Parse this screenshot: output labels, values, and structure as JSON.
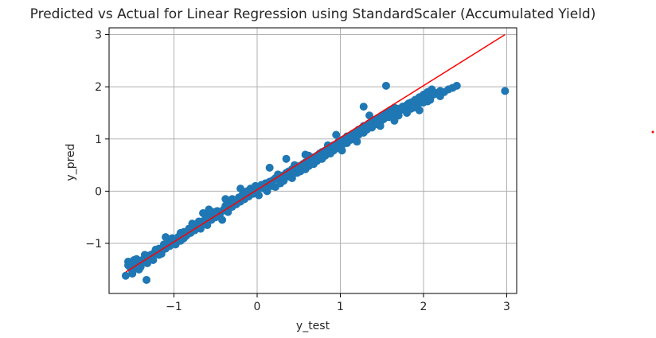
{
  "chart_data": {
    "type": "scatter",
    "title": "Predicted vs Actual for Linear Regression using StandardScaler (Accumulated Yield)",
    "xlabel": "y_test",
    "ylabel": "y_pred",
    "xlim": [
      -1.78,
      3.12
    ],
    "ylim": [
      -1.96,
      3.13
    ],
    "xticks": [
      -1,
      0,
      1,
      2,
      3
    ],
    "xtick_labels": [
      "−1",
      "0",
      "1",
      "2",
      "3"
    ],
    "yticks": [
      -1,
      0,
      1,
      2,
      3
    ],
    "ytick_labels": [
      "−1",
      "0",
      "1",
      "2",
      "3"
    ],
    "grid": true,
    "colors": {
      "points": "#1f77b4",
      "fit_line": "#ff0000",
      "grid": "#b0b0b0",
      "frame": "#000000"
    },
    "fit_line": {
      "x": [
        -1.58,
        2.98
      ],
      "y": [
        -1.55,
        3.0
      ]
    },
    "series": [
      {
        "marker": "circle",
        "x": [
          -1.58,
          -1.55,
          -1.52,
          -1.5,
          -1.48,
          -1.45,
          -1.42,
          -1.4,
          -1.38,
          -1.35,
          -1.32,
          -1.3,
          -1.28,
          -1.25,
          -1.22,
          -1.2,
          -1.18,
          -1.15,
          -1.12,
          -1.1,
          -1.08,
          -1.05,
          -1.02,
          -1.0,
          -0.98,
          -0.95,
          -0.92,
          -0.9,
          -0.88,
          -0.85,
          -0.82,
          -0.8,
          -0.78,
          -0.75,
          -0.72,
          -0.7,
          -0.68,
          -0.65,
          -0.62,
          -0.6,
          -0.58,
          -0.55,
          -0.52,
          -0.5,
          -0.48,
          -0.45,
          -0.42,
          -0.4,
          -0.38,
          -0.35,
          -0.32,
          -0.3,
          -0.28,
          -0.25,
          -0.22,
          -0.2,
          -0.18,
          -0.15,
          -0.12,
          -0.1,
          -0.08,
          -0.05,
          -0.02,
          0.0,
          0.02,
          0.05,
          0.08,
          0.1,
          0.12,
          0.15,
          0.18,
          0.2,
          0.22,
          0.25,
          0.28,
          0.3,
          0.32,
          0.35,
          0.38,
          0.4,
          0.42,
          0.45,
          0.48,
          0.5,
          0.52,
          0.55,
          0.58,
          0.6,
          0.62,
          0.65,
          0.68,
          0.7,
          0.72,
          0.75,
          0.78,
          0.8,
          0.82,
          0.85,
          0.88,
          0.9,
          0.92,
          0.95,
          0.98,
          1.0,
          1.02,
          1.05,
          1.08,
          1.1,
          1.12,
          1.15,
          1.18,
          1.2,
          1.22,
          1.25,
          1.28,
          1.3,
          1.32,
          1.35,
          1.38,
          1.4,
          1.42,
          1.45,
          1.48,
          1.5,
          1.52,
          1.55,
          1.58,
          1.6,
          1.62,
          1.65,
          1.68,
          1.7,
          1.72,
          1.75,
          1.78,
          1.8,
          1.82,
          1.85,
          1.88,
          1.9,
          1.92,
          1.95,
          1.98,
          2.0,
          2.05,
          2.1,
          2.15,
          2.2,
          2.25,
          2.3,
          2.35,
          2.4,
          2.98,
          -1.55,
          -1.48,
          -1.42,
          -1.35,
          -1.28,
          -1.22,
          -1.15,
          -1.08,
          -1.02,
          -0.95,
          -0.88,
          -0.82,
          -0.75,
          -0.68,
          -0.62,
          -0.55,
          -0.48,
          -0.42,
          -0.35,
          -0.28,
          -0.22,
          -0.15,
          -0.08,
          -0.02,
          0.05,
          0.12,
          0.18,
          0.25,
          0.32,
          0.38,
          0.45,
          0.52,
          0.58,
          0.65,
          0.72,
          0.78,
          0.85,
          0.92,
          0.98,
          1.05,
          1.12,
          1.18,
          1.25,
          1.32,
          1.38,
          1.45,
          1.52,
          1.58,
          1.65,
          1.72,
          1.78,
          1.85,
          1.92,
          1.98,
          -1.5,
          -1.46,
          -1.38,
          -1.32,
          -1.25,
          -1.18,
          -1.12,
          -1.05,
          -0.98,
          -0.92,
          -0.85,
          -0.78,
          -0.72,
          -0.65,
          -0.58,
          -0.52,
          -0.45,
          -0.38,
          -0.32,
          -0.25,
          -0.18,
          -0.12,
          -0.05,
          0.02,
          0.08,
          0.15,
          0.22,
          0.28,
          0.35,
          0.42,
          0.48,
          0.55,
          0.62,
          0.68,
          0.75,
          0.82,
          0.88,
          0.95,
          1.02,
          1.08,
          1.15,
          1.22,
          1.28,
          1.35,
          1.42,
          1.48,
          1.55,
          1.62,
          1.68,
          1.75,
          1.82,
          1.88,
          1.95,
          2.02,
          2.08,
          2.12,
          -1.33,
          -0.65,
          -0.58,
          -0.38,
          -0.2,
          0.15,
          0.35,
          0.45,
          0.62,
          0.95,
          1.02,
          1.2,
          1.28,
          1.35,
          1.48,
          1.55,
          1.7,
          1.88,
          2.0,
          2.08,
          2.12,
          -1.45,
          -1.1,
          -0.92,
          -0.72,
          -0.52,
          -0.3,
          -0.12,
          0.05,
          0.25,
          0.4,
          0.58,
          0.72,
          0.85,
          1.12,
          1.3,
          1.45,
          1.65,
          1.8,
          1.95,
          2.05,
          2.2
        ],
        "y": [
          -1.62,
          -1.35,
          -1.48,
          -1.58,
          -1.42,
          -1.38,
          -1.5,
          -1.45,
          -1.36,
          -1.3,
          -1.38,
          -1.25,
          -1.22,
          -1.32,
          -1.18,
          -1.12,
          -1.22,
          -1.15,
          -1.02,
          -1.1,
          -0.98,
          -1.05,
          -0.9,
          -0.95,
          -1.02,
          -0.88,
          -0.8,
          -0.92,
          -0.78,
          -0.85,
          -0.72,
          -0.8,
          -0.62,
          -0.75,
          -0.68,
          -0.58,
          -0.72,
          -0.6,
          -0.52,
          -0.65,
          -0.48,
          -0.55,
          -0.42,
          -0.5,
          -0.38,
          -0.45,
          -0.55,
          -0.35,
          -0.28,
          -0.4,
          -0.22,
          -0.3,
          -0.18,
          -0.25,
          -0.12,
          -0.2,
          -0.08,
          -0.15,
          -0.02,
          -0.1,
          0.05,
          -0.05,
          0.1,
          0.02,
          -0.08,
          0.12,
          0.05,
          0.15,
          0.0,
          0.18,
          0.1,
          0.22,
          0.08,
          0.25,
          0.15,
          0.3,
          0.2,
          0.32,
          0.28,
          0.38,
          0.25,
          0.42,
          0.35,
          0.45,
          0.38,
          0.5,
          0.42,
          0.55,
          0.48,
          0.6,
          0.52,
          0.65,
          0.58,
          0.7,
          0.62,
          0.75,
          0.68,
          0.8,
          0.72,
          0.85,
          0.78,
          0.9,
          0.82,
          0.95,
          0.88,
          1.0,
          0.92,
          1.05,
          0.98,
          1.1,
          1.02,
          1.15,
          1.08,
          1.2,
          1.12,
          1.25,
          1.18,
          1.3,
          1.22,
          1.35,
          1.28,
          1.4,
          1.32,
          1.45,
          1.38,
          1.5,
          1.42,
          1.55,
          1.48,
          1.6,
          1.52,
          1.58,
          1.55,
          1.62,
          1.6,
          1.65,
          1.58,
          1.7,
          1.62,
          1.75,
          1.68,
          1.8,
          1.72,
          1.85,
          1.9,
          1.95,
          1.88,
          1.92,
          1.9,
          1.95,
          1.98,
          2.02,
          1.92,
          -1.42,
          -1.32,
          -1.4,
          -1.22,
          -1.28,
          -1.12,
          -1.2,
          -1.05,
          -0.98,
          -0.92,
          -0.9,
          -0.75,
          -0.7,
          -0.62,
          -0.55,
          -0.5,
          -0.42,
          -0.38,
          -0.3,
          -0.25,
          -0.18,
          -0.1,
          -0.05,
          0.02,
          0.08,
          0.12,
          0.2,
          0.28,
          0.3,
          0.38,
          0.45,
          0.48,
          0.55,
          0.62,
          0.68,
          0.75,
          0.8,
          0.88,
          0.95,
          1.0,
          1.05,
          1.12,
          1.18,
          1.22,
          1.3,
          1.38,
          1.42,
          1.5,
          1.45,
          1.55,
          1.6,
          1.58,
          1.65,
          1.7,
          -1.55,
          -1.45,
          -1.32,
          -1.28,
          -1.2,
          -1.1,
          -1.08,
          -0.95,
          -0.92,
          -0.85,
          -0.82,
          -0.7,
          -0.68,
          -0.58,
          -0.52,
          -0.45,
          -0.4,
          -0.32,
          -0.28,
          -0.2,
          -0.15,
          -0.08,
          0.0,
          0.05,
          0.12,
          0.18,
          0.25,
          0.3,
          0.35,
          0.42,
          0.48,
          0.52,
          0.6,
          0.65,
          0.72,
          0.78,
          0.85,
          0.9,
          0.98,
          1.05,
          1.1,
          1.18,
          1.25,
          1.3,
          1.35,
          1.4,
          1.48,
          1.52,
          1.58,
          1.62,
          1.68,
          1.72,
          1.78,
          1.82,
          1.88,
          1.9,
          -1.7,
          -0.42,
          -0.35,
          -0.15,
          0.05,
          0.45,
          0.62,
          0.5,
          0.68,
          1.08,
          0.78,
          0.95,
          1.62,
          1.45,
          1.25,
          2.02,
          1.45,
          1.6,
          1.7,
          1.75,
          1.85,
          -1.3,
          -0.88,
          -0.95,
          -0.65,
          -0.4,
          -0.15,
          0.0,
          0.1,
          0.32,
          0.35,
          0.7,
          0.62,
          0.88,
          1.05,
          1.2,
          1.32,
          1.35,
          1.5,
          1.55,
          1.72,
          1.82
        ]
      }
    ]
  }
}
